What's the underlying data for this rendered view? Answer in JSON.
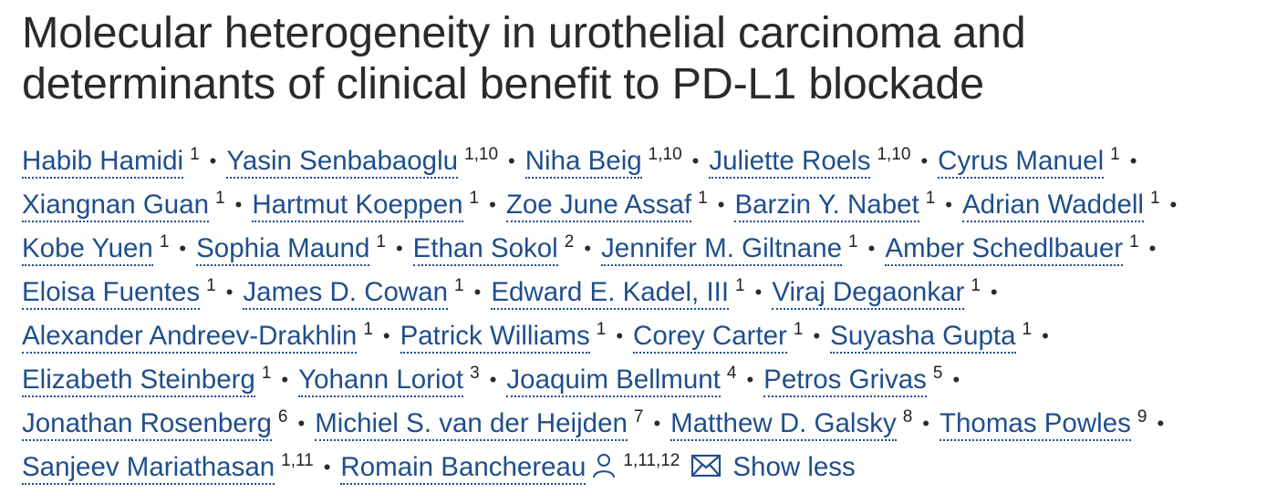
{
  "title": {
    "line1": "Molecular heterogeneity in urothelial carcinoma and",
    "line2": "determinants of clinical benefit to PD-L1 blockade"
  },
  "authors": [
    {
      "name": "Habib Hamidi",
      "aff": "1"
    },
    {
      "name": "Yasin Senbabaoglu",
      "aff": "1,10"
    },
    {
      "name": "Niha Beig",
      "aff": "1,10"
    },
    {
      "name": "Juliette Roels",
      "aff": "1,10"
    },
    {
      "name": "Cyrus Manuel",
      "aff": "1"
    },
    {
      "name": "Xiangnan Guan",
      "aff": "1"
    },
    {
      "name": "Hartmut Koeppen",
      "aff": "1"
    },
    {
      "name": "Zoe June Assaf",
      "aff": "1"
    },
    {
      "name": "Barzin Y. Nabet",
      "aff": "1"
    },
    {
      "name": "Adrian Waddell",
      "aff": "1"
    },
    {
      "name": "Kobe Yuen",
      "aff": "1"
    },
    {
      "name": "Sophia Maund",
      "aff": "1"
    },
    {
      "name": "Ethan Sokol",
      "aff": "2"
    },
    {
      "name": "Jennifer M. Giltnane",
      "aff": "1"
    },
    {
      "name": "Amber Schedlbauer",
      "aff": "1"
    },
    {
      "name": "Eloisa Fuentes",
      "aff": "1"
    },
    {
      "name": "James D. Cowan",
      "aff": "1"
    },
    {
      "name": "Edward E. Kadel, III",
      "aff": "1"
    },
    {
      "name": "Viraj Degaonkar",
      "aff": "1"
    },
    {
      "name": "Alexander Andreev-Drakhlin",
      "aff": "1"
    },
    {
      "name": "Patrick Williams",
      "aff": "1"
    },
    {
      "name": "Corey Carter",
      "aff": "1"
    },
    {
      "name": "Suyasha Gupta",
      "aff": "1"
    },
    {
      "name": "Elizabeth Steinberg",
      "aff": "1"
    },
    {
      "name": "Yohann Loriot",
      "aff": "3"
    },
    {
      "name": "Joaquim Bellmunt",
      "aff": "4"
    },
    {
      "name": "Petros Grivas",
      "aff": "5"
    },
    {
      "name": "Jonathan Rosenberg",
      "aff": "6"
    },
    {
      "name": "Michiel S. van der Heijden",
      "aff": "7"
    },
    {
      "name": "Matthew D. Galsky",
      "aff": "8"
    },
    {
      "name": "Thomas Powles",
      "aff": "9"
    },
    {
      "name": "Sanjeev Mariathasan",
      "aff": "1,11"
    },
    {
      "name": "Romain Banchereau",
      "aff": "1,11,12"
    }
  ],
  "separator": "•",
  "show_less_label": "Show less",
  "icons": {
    "corresponding_author": "person-icon",
    "email": "mail-icon"
  },
  "colors": {
    "link": "#1f4e8c",
    "title": "#2a2a2a",
    "text": "#1f1f1f"
  }
}
